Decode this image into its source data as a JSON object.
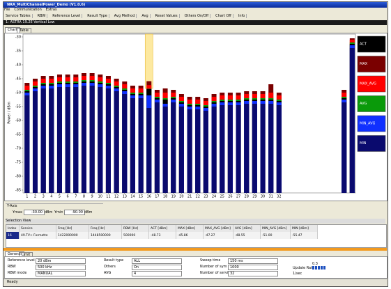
{
  "window": {
    "title": "NRA_MultiChannelPower_Demo (V1.0.6)",
    "menu": [
      "File",
      "Communication",
      "Extras"
    ],
    "toolbar": [
      "Service Tables",
      "RBW",
      "Reference Level",
      "Result Type",
      "Avg Method",
      "Avg",
      "Reset Values",
      "Others On/Off",
      "Chart Off",
      "Info"
    ],
    "header": "1: ASTRA 19.2E Vertical Low",
    "tabs": [
      "Chart",
      "Table"
    ]
  },
  "chart_data": {
    "type": "bar",
    "y_label": "Power / dBm",
    "x": [
      1,
      2,
      3,
      4,
      5,
      6,
      7,
      8,
      9,
      10,
      11,
      12,
      13,
      14,
      15,
      16,
      17,
      18,
      19,
      20,
      21,
      22,
      23,
      24,
      25,
      26,
      27,
      28,
      29,
      30,
      31,
      32,
      40,
      41
    ],
    "xlim": [
      0.5,
      41.4
    ],
    "xticks": [
      1,
      2,
      3,
      4,
      5,
      6,
      7,
      8,
      9,
      10,
      11,
      12,
      13,
      14,
      15,
      16,
      17,
      18,
      19,
      20,
      21,
      22,
      23,
      24,
      25,
      26,
      27,
      28,
      29,
      30,
      31,
      32
    ],
    "ylim": [
      -86,
      -29
    ],
    "yticks": [
      -30,
      -35,
      -40,
      -45,
      -50,
      -55,
      -60,
      -65,
      -70,
      -75,
      -80,
      -85
    ],
    "grid": false,
    "selected_x": 16,
    "series": [
      {
        "name": "ACT",
        "color": "#000000",
        "values": [
          -49.5,
          -48,
          -47,
          -47,
          -46.5,
          -46.5,
          -46.5,
          -46,
          -46,
          -46.5,
          -47,
          -48,
          -49,
          -50.5,
          -50.5,
          -48.7,
          -52,
          -52.5,
          -52,
          -53.5,
          -54.5,
          -54.5,
          -55,
          -53.5,
          -53,
          -53,
          -53,
          -52.5,
          -52.5,
          -52.5,
          -52.5,
          -53,
          -52,
          -32.5
        ]
      },
      {
        "name": "MAX",
        "color": "#7a0000",
        "values": [
          -46.5,
          -45,
          -44,
          -44,
          -43.5,
          -43.5,
          -43.5,
          -43,
          -43,
          -43.5,
          -44,
          -45,
          -46,
          -47.5,
          -47.5,
          -45.9,
          -49,
          -48.5,
          -49,
          -50.5,
          -51.5,
          -51.5,
          -52,
          -50.5,
          -50,
          -50,
          -50,
          -49.5,
          -49.5,
          -49.5,
          -47,
          -50,
          -49,
          -30.5
        ]
      },
      {
        "name": "MAX_AVG",
        "color": "#ff0000",
        "values": [
          -47.5,
          -46,
          -45,
          -45,
          -44.5,
          -44.5,
          -44.5,
          -44,
          -44,
          -44.5,
          -45,
          -46,
          -47,
          -48.5,
          -48.5,
          -47.3,
          -50,
          -50,
          -50,
          -51.5,
          -52.5,
          -52.5,
          -53,
          -51.5,
          -51,
          -51,
          -51,
          -50.5,
          -50.5,
          -50.5,
          -50,
          -51,
          -50,
          -31
        ]
      },
      {
        "name": "AVG",
        "color": "#0a9a0a",
        "values": [
          -49,
          -47.5,
          -46.5,
          -46.5,
          -46,
          -46,
          -46,
          -45.5,
          -45.5,
          -46,
          -46.5,
          -47.5,
          -48.5,
          -50,
          -50,
          -48.6,
          -51.5,
          -52,
          -51.5,
          -53,
          -54,
          -54,
          -54.5,
          -53,
          -52.5,
          -52.5,
          -52.5,
          -52,
          -52,
          -52,
          -52,
          -52.5,
          -51.5,
          -32
        ]
      },
      {
        "name": "MIN_AVG",
        "color": "#1030ff",
        "values": [
          -50,
          -48.5,
          -47.5,
          -47.5,
          -47,
          -47,
          -47,
          -46.5,
          -46.5,
          -47,
          -47.5,
          -48.5,
          -49.5,
          -51,
          -51,
          -51,
          -52.5,
          -54,
          -52.5,
          -54,
          -55,
          -55,
          -55.5,
          -54,
          -53.5,
          -53.5,
          -53.5,
          -53,
          -53,
          -53,
          -53,
          -53.5,
          -52.5,
          -33
        ]
      },
      {
        "name": "MIN",
        "color": "#0a0a6e",
        "values": [
          -51,
          -49.5,
          -48.5,
          -48.5,
          -48,
          -48,
          -48,
          -47.5,
          -47.5,
          -48,
          -48.5,
          -49.5,
          -50.5,
          -52,
          -52,
          -55.5,
          -53.5,
          -55,
          -53.5,
          -55,
          -56,
          -56,
          -56.5,
          -55,
          -54.5,
          -54.5,
          -54.5,
          -54,
          -54,
          -54,
          -54,
          -54.5,
          -53.5,
          -34
        ]
      }
    ]
  },
  "y_axis": {
    "title": "Y-Axis",
    "ymax_label": "Ymax",
    "ymax": "-30.00",
    "ymax_unit": "dBm",
    "ymin_label": "Ymin",
    "ymin": "-90.00",
    "ymin_unit": "dBm"
  },
  "selection_view": {
    "title": "Selection View",
    "columns": [
      "Index",
      "Service",
      "Freq [Hz]",
      "Freq [Hz]",
      "RBW [Hz]",
      "ACT [dBm]",
      "MAX [dBm]",
      "MAX_AVG [dBm]",
      "AVG [dBm]",
      "MIN_AVG [dBm]",
      "MIN [dBm]"
    ],
    "rows": [
      [
        "16",
        "49.TV+ Formatte",
        "1422000000",
        "1448500000",
        "500000",
        "-48.73",
        "-45.86",
        "-47.27",
        "-48.55",
        "-51.00",
        "-55.47"
      ]
    ]
  },
  "settings": {
    "tabs": [
      "General",
      "Limit"
    ],
    "fields": [
      [
        "Reference level",
        "20 dBm"
      ],
      [
        "RBW",
        "500 kHz"
      ],
      [
        "RBW mode",
        "MANUAL"
      ],
      [
        "Result type",
        "ALL"
      ],
      [
        "Others",
        "On"
      ],
      [
        "AVG",
        "4"
      ],
      [
        "Sweep time",
        "150 ms"
      ],
      [
        "Number of sym",
        "1000"
      ],
      [
        "Number of services",
        "32"
      ]
    ],
    "update_rate_label": "Update Rate",
    "update_rate_value": "0.3",
    "update_rate_unit": "1/sec"
  },
  "status": "Ready"
}
